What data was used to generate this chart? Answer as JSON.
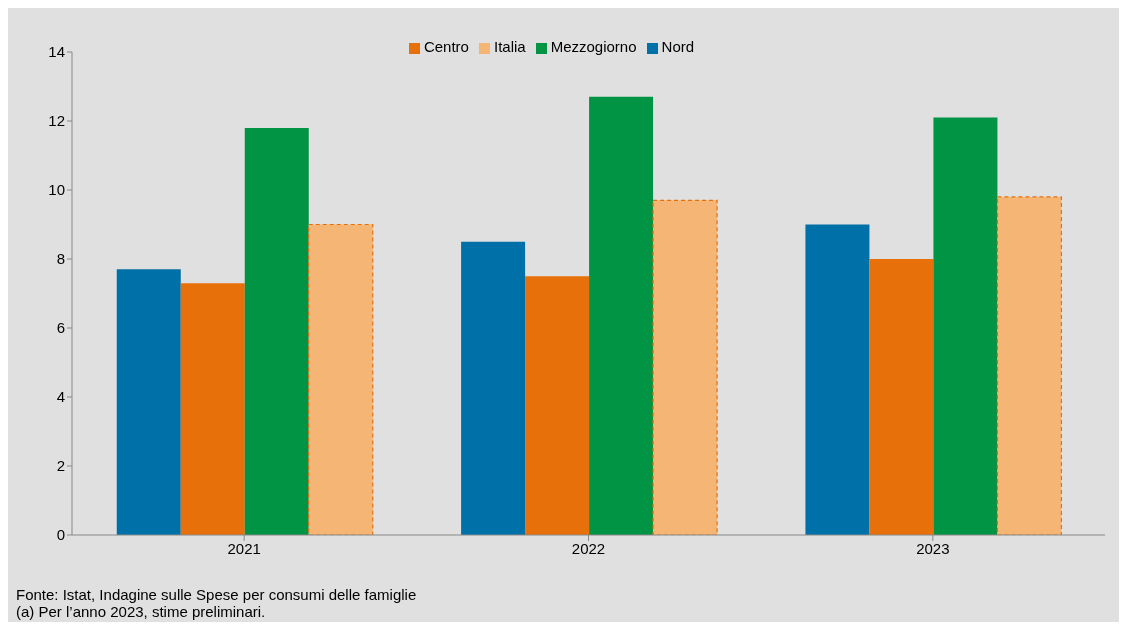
{
  "chart_data": {
    "type": "bar",
    "categories": [
      "2021",
      "2022",
      "2023"
    ],
    "series": [
      {
        "name": "Nord",
        "color": "#0070a8",
        "values": [
          7.7,
          8.5,
          9.0
        ]
      },
      {
        "name": "Centro",
        "color": "#e8700a",
        "values": [
          7.3,
          7.5,
          8.0
        ]
      },
      {
        "name": "Mezzogiorno",
        "color": "#009444",
        "values": [
          11.8,
          12.7,
          12.1
        ]
      },
      {
        "name": "Italia",
        "color": "#f5b574",
        "values": [
          9.0,
          9.7,
          9.8
        ],
        "line_style": "dashed"
      }
    ],
    "ylim": [
      0,
      14
    ],
    "yticks": [
      0,
      2,
      4,
      6,
      8,
      10,
      12,
      14
    ],
    "grid": false,
    "legend": "top",
    "annotations": [
      "Fonte: Istat, Indagine sulle Spese per consumi delle famiglie",
      "(a) Per l’anno 2023, stime preliminari."
    ]
  }
}
